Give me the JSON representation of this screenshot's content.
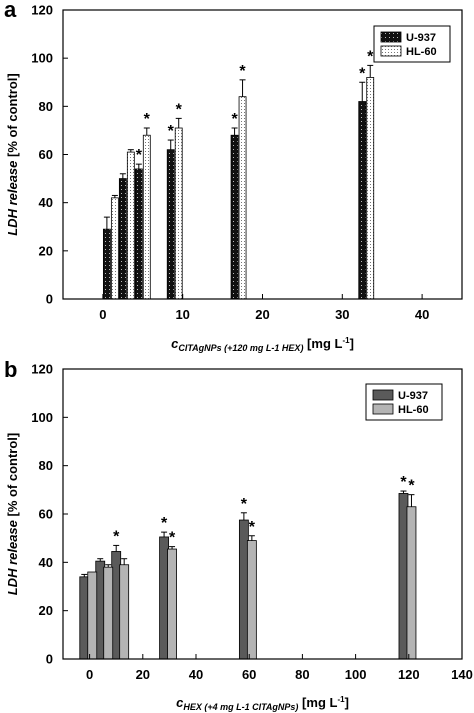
{
  "chart_data": [
    {
      "type": "bar",
      "panel": "a",
      "ylabel": "LDH release [% of control]",
      "xlabel_main": "c",
      "xlabel_sub": "CITAgNPs (+120 mg L-1 HEX)",
      "xlabel_unit": "[mg L",
      "xlabel_unit_sup": "-1",
      "xlabel_unit_end": "]",
      "xlim": [
        -5,
        45
      ],
      "ylim": [
        0,
        120
      ],
      "xticks": [
        0,
        10,
        20,
        30,
        40
      ],
      "yticks": [
        0,
        20,
        40,
        60,
        80,
        100,
        120
      ],
      "legend_position": "top-right",
      "significance_marker": "*",
      "series": [
        {
          "name": "U-937",
          "pattern": "dark-dotted",
          "color": "#111111",
          "x": [
            0.5,
            2.5,
            4.5,
            8.5,
            16.5,
            32.5
          ],
          "values": [
            29,
            50,
            54,
            62,
            68,
            82
          ],
          "errors": [
            5,
            2,
            2,
            4,
            3,
            8
          ],
          "significant": [
            false,
            false,
            true,
            true,
            true,
            true
          ]
        },
        {
          "name": "HL-60",
          "pattern": "light-dotted",
          "color": "#ffffff",
          "x": [
            1.5,
            3.5,
            5.5,
            9.5,
            17.5,
            33.5
          ],
          "values": [
            42,
            61,
            68,
            71,
            84,
            92
          ],
          "errors": [
            1,
            1,
            3,
            4,
            7,
            5
          ],
          "significant": [
            false,
            false,
            true,
            true,
            true,
            true
          ]
        }
      ]
    },
    {
      "type": "bar",
      "panel": "b",
      "ylabel": "LDH release [% of control]",
      "xlabel_main": "c",
      "xlabel_sub": "HEX (+4 mg L-1 CITAgNPs)",
      "xlabel_unit": "[mg L",
      "xlabel_unit_sup": "-1",
      "xlabel_unit_end": "]",
      "xlim": [
        -10,
        140
      ],
      "ylim": [
        0,
        120
      ],
      "xticks": [
        0,
        20,
        40,
        60,
        80,
        100,
        120,
        140
      ],
      "yticks": [
        0,
        20,
        40,
        60,
        80,
        100,
        120
      ],
      "legend_position": "top-right",
      "significance_marker": "*",
      "series": [
        {
          "name": "U-937",
          "color": "#5a5a5a",
          "x": [
            -2,
            4,
            10,
            28,
            58,
            118
          ],
          "values": [
            34,
            40.5,
            44.5,
            50.5,
            57.5,
            68.5
          ],
          "errors": [
            1,
            1,
            2.5,
            2,
            3,
            1
          ],
          "significant": [
            false,
            false,
            true,
            true,
            true,
            true
          ]
        },
        {
          "name": "HL-60",
          "color": "#b4b4b4",
          "x": [
            1,
            7,
            13,
            31,
            61,
            121
          ],
          "values": [
            36,
            38,
            39,
            45.5,
            49,
            63
          ],
          "errors": [
            0,
            1,
            2.5,
            1,
            2,
            5
          ],
          "significant": [
            false,
            false,
            false,
            true,
            true,
            true
          ]
        }
      ]
    }
  ]
}
